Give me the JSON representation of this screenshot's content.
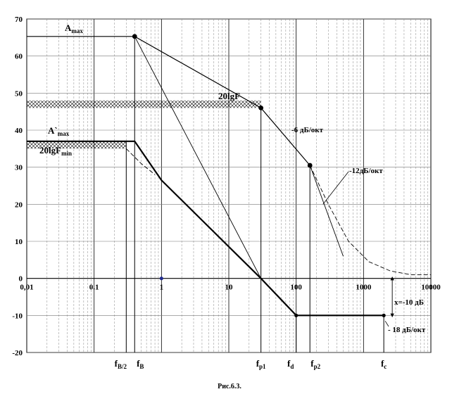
{
  "chart_data": {
    "type": "line",
    "title": "",
    "xlabel": "",
    "ylabel": "",
    "x_scale": "log",
    "xlim": [
      0.01,
      10000
    ],
    "ylim": [
      -20,
      70
    ],
    "x_tick_labels": [
      "0,01",
      "0.1",
      "1",
      "10",
      "100",
      "1000",
      "10000"
    ],
    "y_tick_labels": [
      "70",
      "60",
      "50",
      "40",
      "30",
      "20",
      "10",
      "0",
      "-10",
      "-20"
    ],
    "series": [
      {
        "name": "A max",
        "style": "solid-medium",
        "points": [
          [
            0.01,
            65.3
          ],
          [
            0.4,
            65.3
          ],
          [
            30,
            46
          ],
          [
            160,
            30.5
          ]
        ]
      },
      {
        "name": "A'max",
        "style": "solid-heavy",
        "points": [
          [
            0.01,
            37
          ],
          [
            0.4,
            37
          ],
          [
            1,
            26.5
          ],
          [
            30,
            0
          ],
          [
            100,
            -10
          ],
          [
            2000,
            -10
          ]
        ]
      },
      {
        "name": "",
        "style": "solid-thin",
        "points": [
          [
            0.4,
            65.3
          ],
          [
            30,
            0
          ]
        ]
      },
      {
        "name": "-12 dB/oct asymptote",
        "style": "solid-thin",
        "points": [
          [
            160,
            30.5
          ],
          [
            500,
            6
          ]
        ]
      },
      {
        "name": "",
        "style": "dashed",
        "points": [
          [
            0.3,
            35
          ],
          [
            0.5,
            31
          ],
          [
            0.8,
            28
          ]
        ]
      },
      {
        "name": "",
        "style": "dashed",
        "points": [
          [
            160,
            30.5
          ],
          [
            300,
            20
          ],
          [
            600,
            10
          ],
          [
            1200,
            4.5
          ],
          [
            2500,
            2
          ],
          [
            5000,
            1
          ],
          [
            10000,
            1
          ]
        ]
      }
    ],
    "markers": [
      [
        0.4,
        65.3
      ],
      [
        30,
        46
      ],
      [
        160,
        30.5
      ],
      [
        1,
        0
      ]
    ],
    "bands": [
      {
        "label": "20lgF",
        "x_range": [
          0.01,
          30
        ],
        "y_range": [
          46,
          48
        ]
      },
      {
        "label": "20lgFmin",
        "x_range": [
          0.01,
          0.3
        ],
        "y_range": [
          35,
          37
        ]
      }
    ],
    "vlines": [
      {
        "x": 0.3,
        "y_range": [
          -20,
          37
        ]
      },
      {
        "x": 0.4,
        "y_range": [
          -20,
          65.3
        ]
      },
      {
        "x": 30,
        "y_range": [
          -20,
          46
        ]
      },
      {
        "x": 100,
        "y_range": [
          -20,
          -10
        ]
      },
      {
        "x": 160,
        "y_range": [
          -20,
          30.5
        ]
      },
      {
        "x": 2000,
        "y_range": [
          -20,
          -10
        ]
      }
    ],
    "bottom_labels": [
      {
        "x": 0.3,
        "main": "f",
        "sub": "B/2"
      },
      {
        "x": 0.4,
        "main": "f",
        "sub": "B"
      },
      {
        "x": 30,
        "main": "f",
        "sub": "p1"
      },
      {
        "x": 100,
        "main": "f",
        "sub": "d"
      },
      {
        "x": 160,
        "main": "f",
        "sub": "p2"
      },
      {
        "x": 2000,
        "main": "f",
        "sub": "c"
      }
    ],
    "annotations": [
      {
        "main": "A",
        "sub": "max"
      },
      {
        "main": "A`",
        "sub": "max"
      },
      {
        "main": "20lgF",
        "sub": ""
      },
      {
        "main": "20lgF",
        "sub": "min"
      },
      {
        "main": "-6 дБ/окт",
        "sub": ""
      },
      {
        "main": "-12дБ/окт",
        "sub": ""
      },
      {
        "main": "x=-10  дБ",
        "sub": ""
      },
      {
        "main": "- 18  дБ/окт",
        "sub": ""
      }
    ],
    "dimension": {
      "x": 2000,
      "y_range": [
        -10,
        0
      ]
    },
    "grid": true
  },
  "caption": "Рис.6.3."
}
